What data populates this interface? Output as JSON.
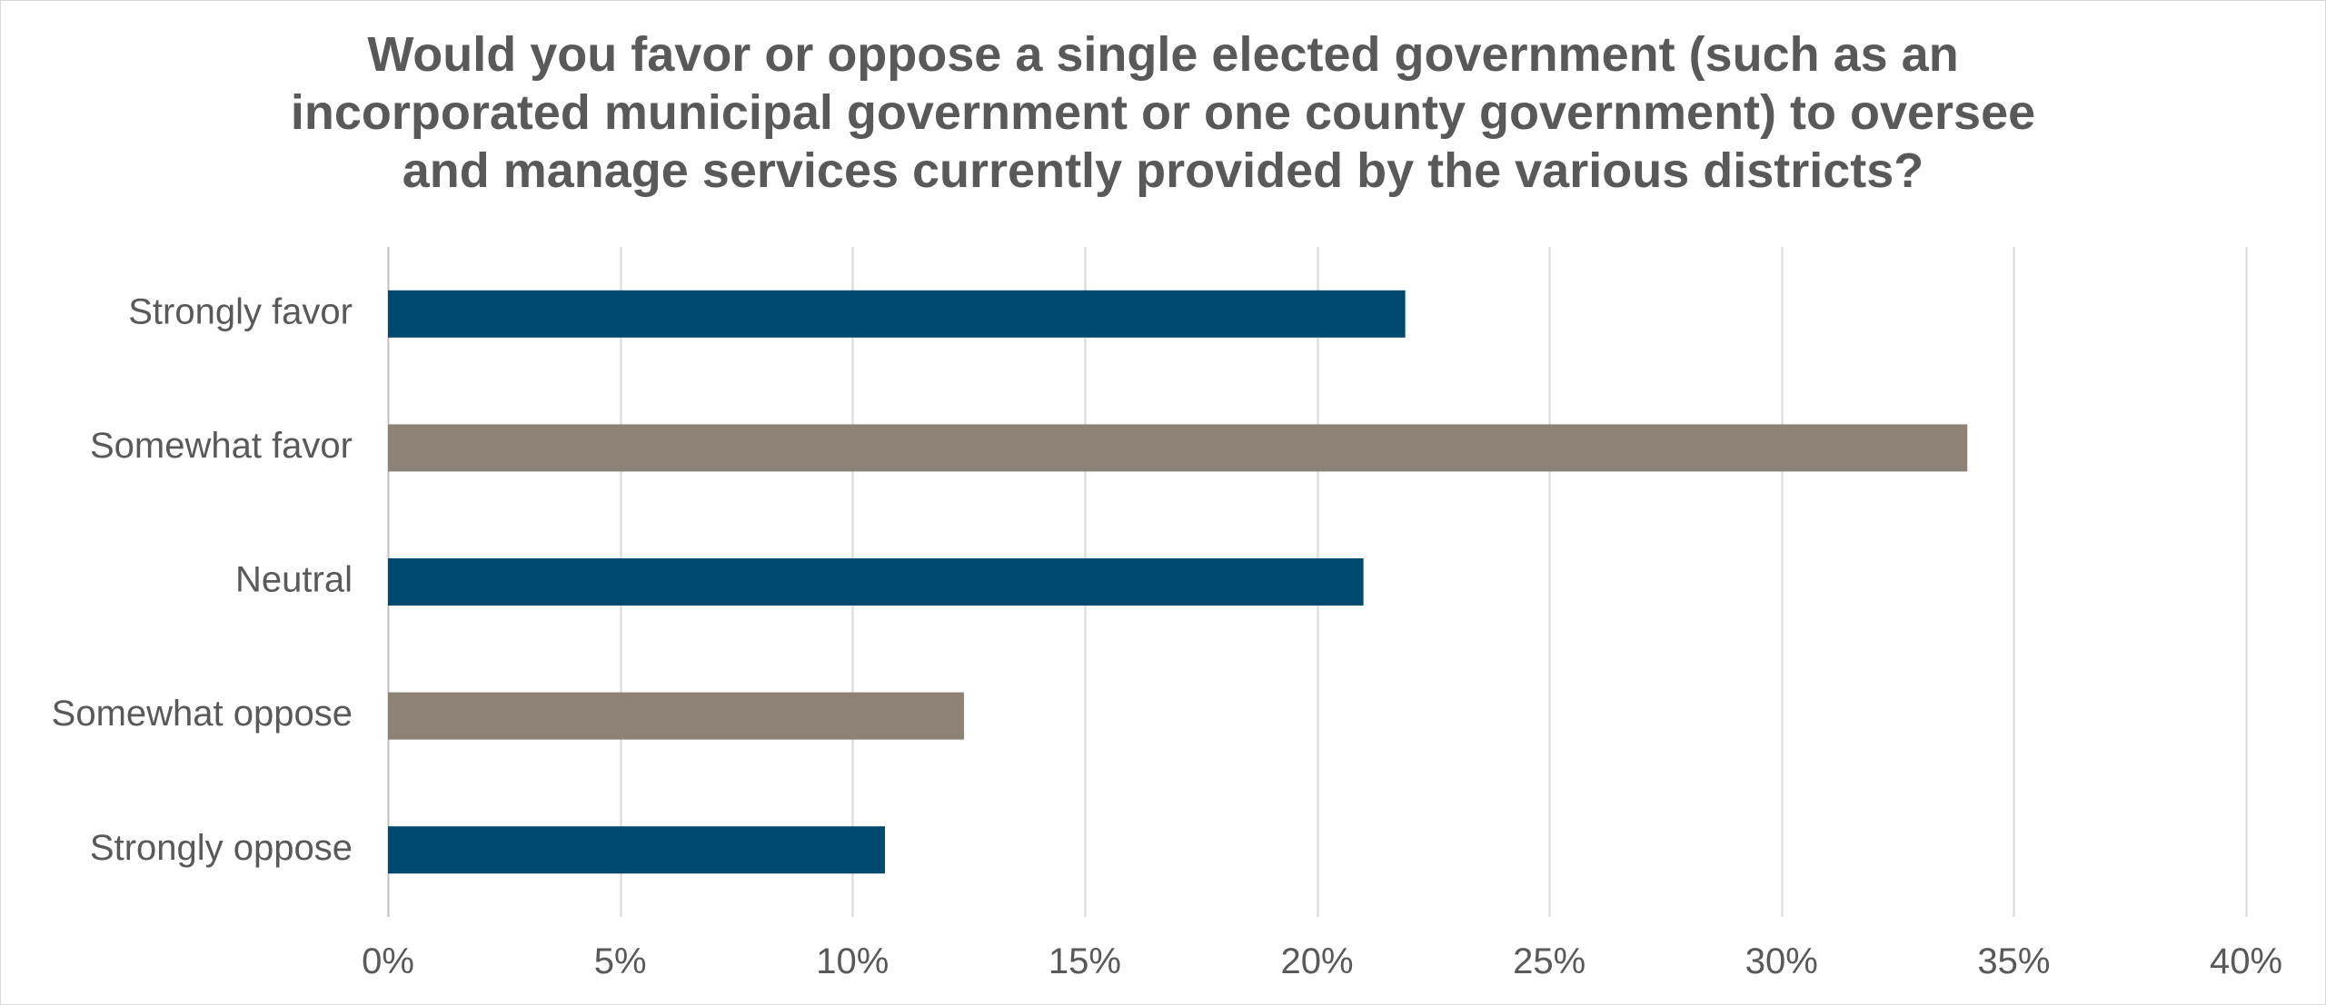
{
  "chart_data": {
    "type": "bar",
    "orientation": "horizontal",
    "title_lines": [
      "Would you favor or oppose a single elected government (such as an",
      "incorporated municipal government or one county government) to oversee",
      "and manage services currently provided by the various districts?"
    ],
    "categories": [
      "Strongly favor",
      "Somewhat favor",
      "Neutral",
      "Somewhat oppose",
      "Strongly oppose"
    ],
    "values": [
      21.9,
      34.0,
      21.0,
      12.4,
      10.7
    ],
    "bar_colors": [
      "#004a70",
      "#8c8276",
      "#004a70",
      "#8c8276",
      "#004a70"
    ],
    "xlim": [
      0,
      40
    ],
    "x_ticks": [
      0,
      5,
      10,
      15,
      20,
      25,
      30,
      35,
      40
    ],
    "x_tick_labels": [
      "0%",
      "5%",
      "10%",
      "15%",
      "20%",
      "25%",
      "30%",
      "35%",
      "40%"
    ],
    "grid": "vertical",
    "legend": "none",
    "xlabel": "",
    "ylabel": ""
  }
}
